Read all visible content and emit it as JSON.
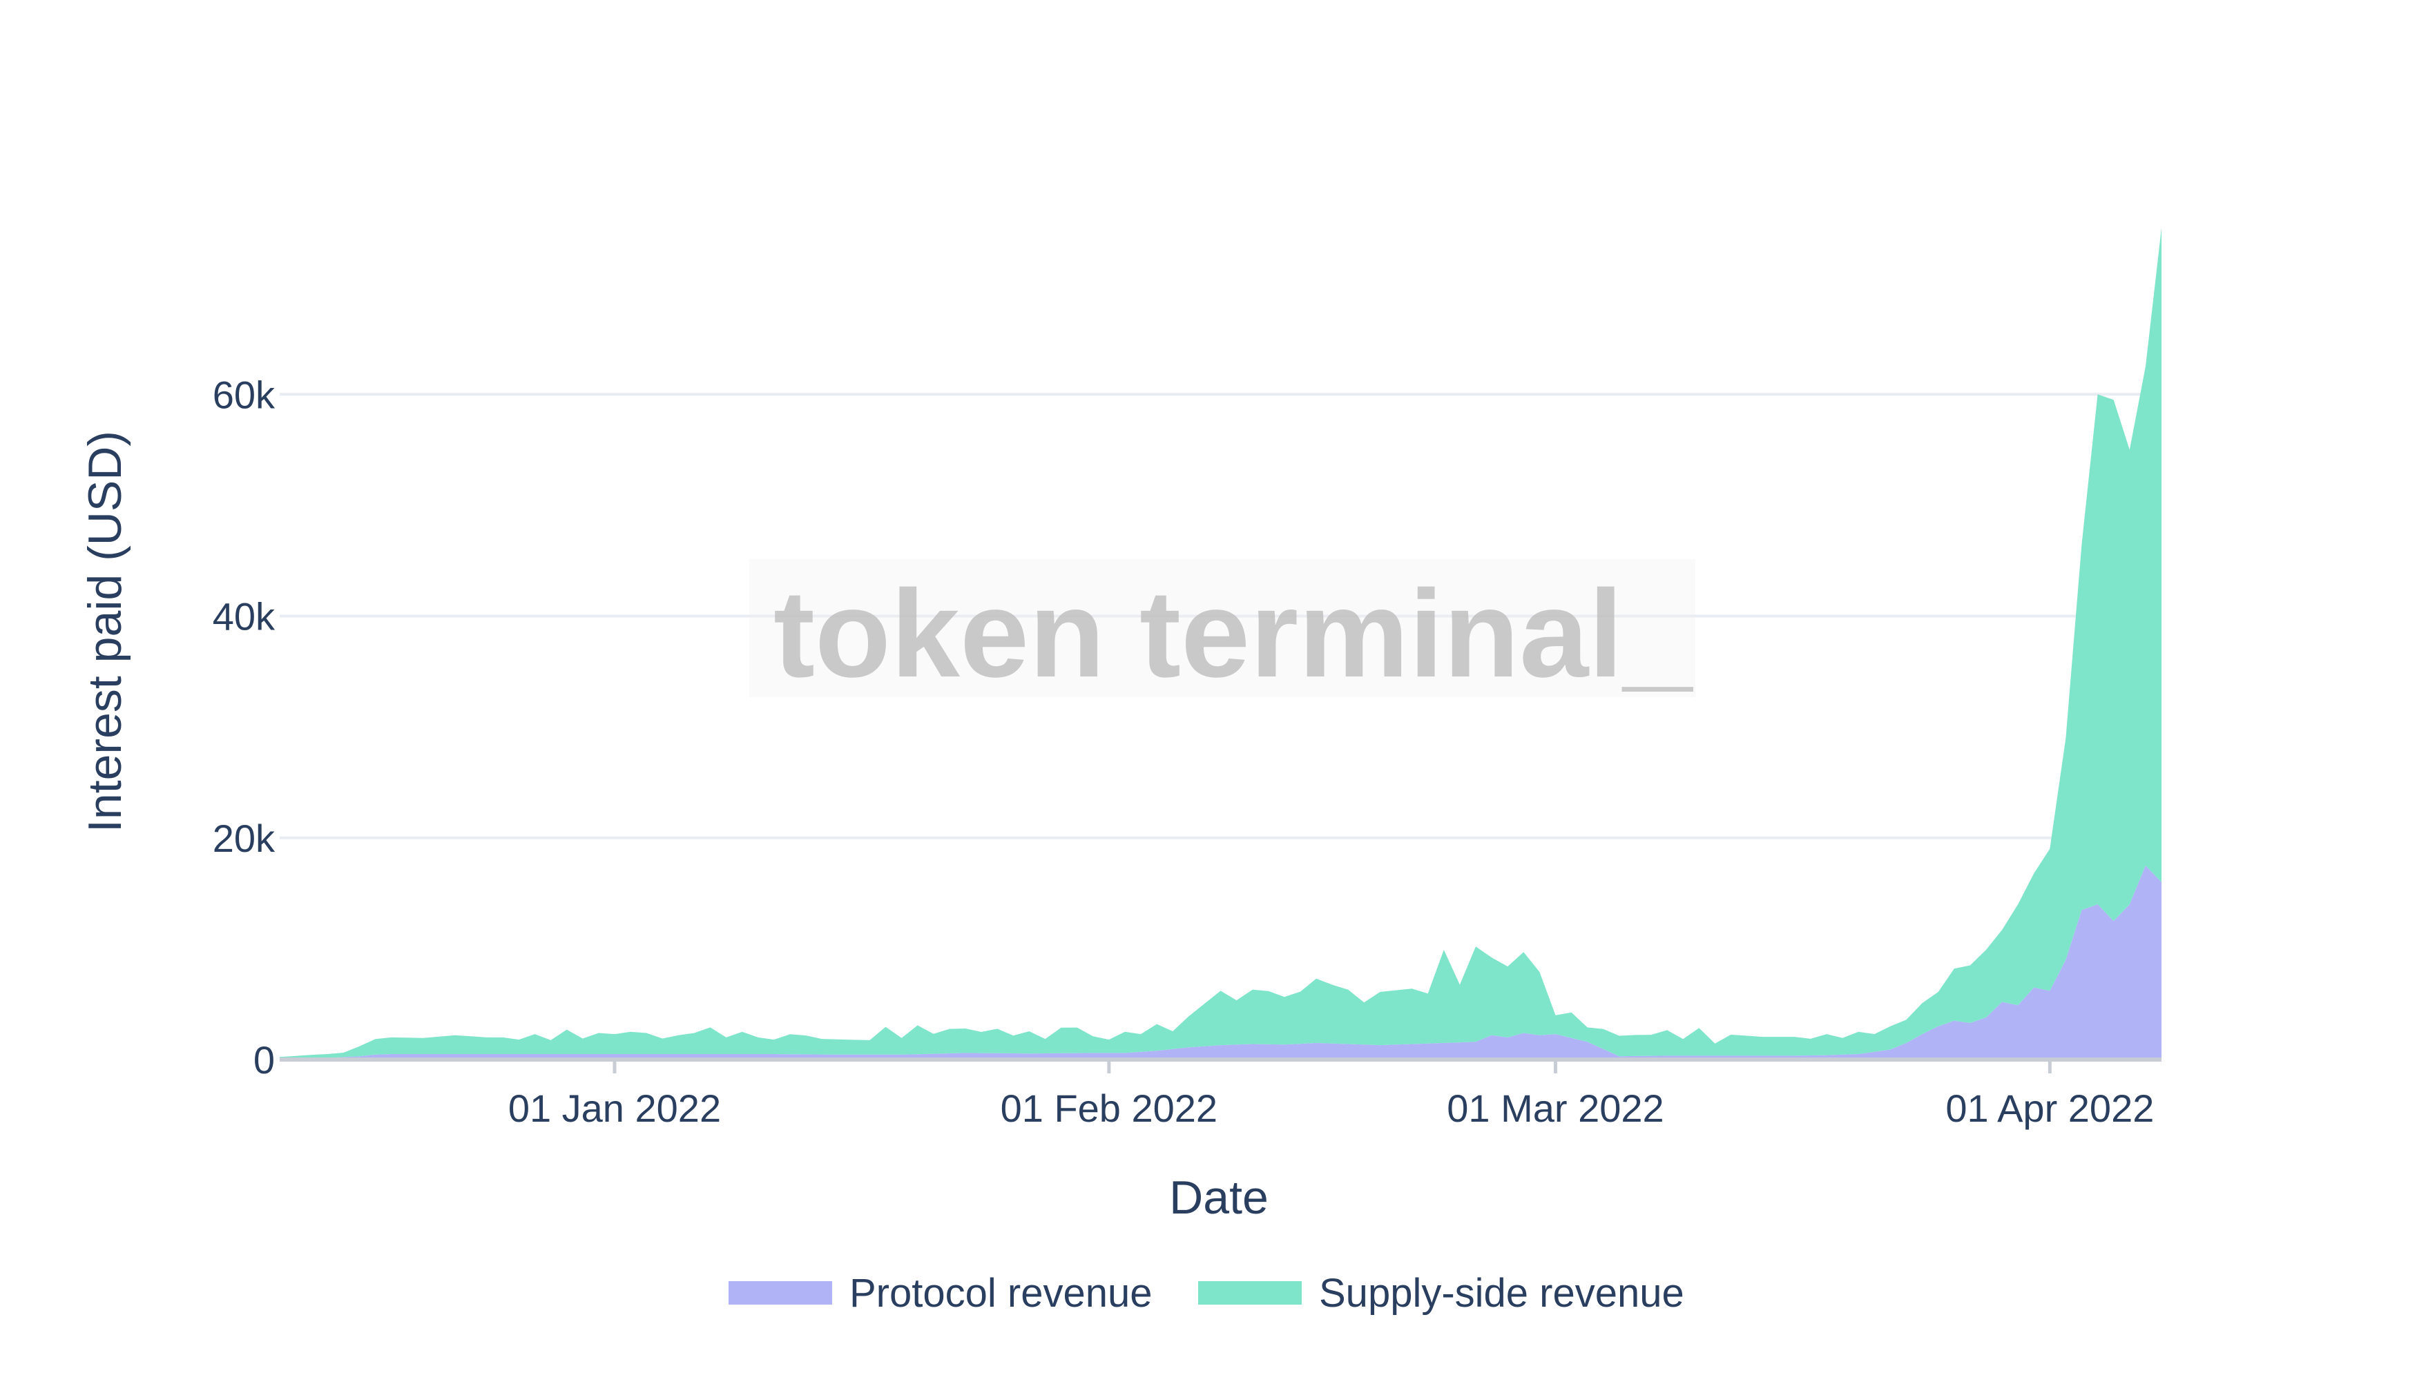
{
  "watermark": "token terminal_",
  "chart_data": {
    "type": "area",
    "stacked": true,
    "xlabel": "Date",
    "ylabel": "Interest paid (USD)",
    "x_ticks": [
      {
        "date": "2022-01-01",
        "label": "01 Jan 2022"
      },
      {
        "date": "2022-02-01",
        "label": "01 Feb 2022"
      },
      {
        "date": "2022-03-01",
        "label": "01 Mar 2022"
      },
      {
        "date": "2022-04-01",
        "label": "01 Apr 2022"
      }
    ],
    "y_ticks": [
      {
        "value": 0,
        "label": "0"
      },
      {
        "value": 20000,
        "label": "20k"
      },
      {
        "value": 40000,
        "label": "40k"
      },
      {
        "value": 60000,
        "label": "60k"
      }
    ],
    "xlim": [
      "2021-12-11",
      "2022-04-08"
    ],
    "ylim": [
      0,
      80000
    ],
    "grid": true,
    "legend_position": "bottom-center",
    "series": [
      {
        "name": "Protocol revenue",
        "color": "#b0b4f7",
        "points": [
          [
            "2021-12-11",
            80
          ],
          [
            "2021-12-14",
            150
          ],
          [
            "2021-12-16",
            300
          ],
          [
            "2021-12-17",
            450
          ],
          [
            "2021-12-18",
            500
          ],
          [
            "2021-12-20",
            500
          ],
          [
            "2021-12-22",
            500
          ],
          [
            "2021-12-26",
            500
          ],
          [
            "2021-12-30",
            500
          ],
          [
            "2022-01-03",
            500
          ],
          [
            "2022-01-07",
            500
          ],
          [
            "2022-01-11",
            500
          ],
          [
            "2022-01-15",
            450
          ],
          [
            "2022-01-19",
            450
          ],
          [
            "2022-01-23",
            600
          ],
          [
            "2022-01-27",
            550
          ],
          [
            "2022-01-31",
            600
          ],
          [
            "2022-02-02",
            600
          ],
          [
            "2022-02-04",
            800
          ],
          [
            "2022-02-06",
            1100
          ],
          [
            "2022-02-08",
            1300
          ],
          [
            "2022-02-10",
            1400
          ],
          [
            "2022-02-12",
            1350
          ],
          [
            "2022-02-14",
            1500
          ],
          [
            "2022-02-16",
            1400
          ],
          [
            "2022-02-18",
            1300
          ],
          [
            "2022-02-20",
            1400
          ],
          [
            "2022-02-22",
            1500
          ],
          [
            "2022-02-24",
            1600
          ],
          [
            "2022-02-25",
            2200
          ],
          [
            "2022-02-26",
            2000
          ],
          [
            "2022-02-27",
            2400
          ],
          [
            "2022-02-28",
            2200
          ],
          [
            "2022-03-01",
            2300
          ],
          [
            "2022-03-03",
            1600
          ],
          [
            "2022-03-05",
            300
          ],
          [
            "2022-03-08",
            350
          ],
          [
            "2022-03-12",
            350
          ],
          [
            "2022-03-16",
            350
          ],
          [
            "2022-03-18",
            400
          ],
          [
            "2022-03-20",
            500
          ],
          [
            "2022-03-21",
            700
          ],
          [
            "2022-03-22",
            900
          ],
          [
            "2022-03-23",
            1500
          ],
          [
            "2022-03-24",
            2300
          ],
          [
            "2022-03-25",
            3000
          ],
          [
            "2022-03-26",
            3500
          ],
          [
            "2022-03-27",
            3300
          ],
          [
            "2022-03-28",
            3800
          ],
          [
            "2022-03-29",
            5200
          ],
          [
            "2022-03-30",
            4900
          ],
          [
            "2022-03-31",
            6500
          ],
          [
            "2022-04-01",
            6200
          ],
          [
            "2022-04-02",
            9000
          ],
          [
            "2022-04-03",
            13500
          ],
          [
            "2022-04-04",
            14000
          ],
          [
            "2022-04-05",
            12500
          ],
          [
            "2022-04-06",
            14000
          ],
          [
            "2022-04-07",
            17500
          ],
          [
            "2022-04-08",
            16000
          ]
        ]
      },
      {
        "name": "Supply-side revenue",
        "color": "#7ee5ca",
        "points": [
          [
            "2021-12-11",
            150
          ],
          [
            "2021-12-13",
            300
          ],
          [
            "2021-12-15",
            400
          ],
          [
            "2021-12-17",
            1400
          ],
          [
            "2021-12-18",
            1500
          ],
          [
            "2021-12-20",
            1450
          ],
          [
            "2021-12-22",
            1700
          ],
          [
            "2021-12-24",
            1500
          ],
          [
            "2021-12-25",
            1500
          ],
          [
            "2021-12-26",
            1300
          ],
          [
            "2021-12-27",
            1800
          ],
          [
            "2021-12-28",
            1250
          ],
          [
            "2021-12-29",
            2200
          ],
          [
            "2021-12-30",
            1400
          ],
          [
            "2021-12-31",
            1900
          ],
          [
            "2022-01-01",
            1800
          ],
          [
            "2022-01-02",
            2000
          ],
          [
            "2022-01-03",
            1900
          ],
          [
            "2022-01-04",
            1400
          ],
          [
            "2022-01-05",
            1700
          ],
          [
            "2022-01-06",
            1900
          ],
          [
            "2022-01-07",
            2400
          ],
          [
            "2022-01-08",
            1500
          ],
          [
            "2022-01-09",
            2000
          ],
          [
            "2022-01-10",
            1500
          ],
          [
            "2022-01-11",
            1300
          ],
          [
            "2022-01-12",
            1800
          ],
          [
            "2022-01-13",
            1700
          ],
          [
            "2022-01-14",
            1400
          ],
          [
            "2022-01-17",
            1300
          ],
          [
            "2022-01-18",
            2500
          ],
          [
            "2022-01-19",
            1500
          ],
          [
            "2022-01-20",
            2600
          ],
          [
            "2022-01-21",
            1800
          ],
          [
            "2022-01-22",
            2200
          ],
          [
            "2022-01-23",
            2200
          ],
          [
            "2022-01-24",
            1900
          ],
          [
            "2022-01-25",
            2200
          ],
          [
            "2022-01-26",
            1600
          ],
          [
            "2022-01-27",
            2000
          ],
          [
            "2022-01-28",
            1300
          ],
          [
            "2022-01-29",
            2300
          ],
          [
            "2022-01-30",
            2300
          ],
          [
            "2022-01-31",
            1500
          ],
          [
            "2022-02-01",
            1200
          ],
          [
            "2022-02-02",
            1900
          ],
          [
            "2022-02-03",
            1600
          ],
          [
            "2022-02-04",
            2400
          ],
          [
            "2022-02-05",
            1600
          ],
          [
            "2022-02-06",
            2800
          ],
          [
            "2022-02-08",
            4900
          ],
          [
            "2022-02-09",
            4000
          ],
          [
            "2022-02-10",
            4900
          ],
          [
            "2022-02-11",
            4800
          ],
          [
            "2022-02-12",
            4300
          ],
          [
            "2022-02-13",
            4700
          ],
          [
            "2022-02-14",
            5800
          ],
          [
            "2022-02-15",
            5300
          ],
          [
            "2022-02-16",
            4900
          ],
          [
            "2022-02-17",
            3800
          ],
          [
            "2022-02-18",
            4800
          ],
          [
            "2022-02-20",
            5000
          ],
          [
            "2022-02-21",
            4500
          ],
          [
            "2022-02-22",
            8400
          ],
          [
            "2022-02-23",
            5200
          ],
          [
            "2022-02-24",
            8600
          ],
          [
            "2022-02-25",
            7000
          ],
          [
            "2022-02-26",
            6400
          ],
          [
            "2022-02-27",
            7300
          ],
          [
            "2022-02-28",
            5700
          ],
          [
            "2022-03-01",
            1700
          ],
          [
            "2022-03-02",
            2300
          ],
          [
            "2022-03-03",
            1300
          ],
          [
            "2022-03-04",
            1800
          ],
          [
            "2022-03-06",
            1900
          ],
          [
            "2022-03-07",
            1900
          ],
          [
            "2022-03-08",
            2300
          ],
          [
            "2022-03-09",
            1500
          ],
          [
            "2022-03-10",
            2500
          ],
          [
            "2022-03-11",
            1100
          ],
          [
            "2022-03-12",
            1900
          ],
          [
            "2022-03-14",
            1700
          ],
          [
            "2022-03-16",
            1700
          ],
          [
            "2022-03-17",
            1500
          ],
          [
            "2022-03-18",
            1900
          ],
          [
            "2022-03-19",
            1500
          ],
          [
            "2022-03-20",
            2000
          ],
          [
            "2022-03-21",
            1600
          ],
          [
            "2022-03-22",
            2100
          ],
          [
            "2022-03-23",
            2100
          ],
          [
            "2022-03-24",
            2800
          ],
          [
            "2022-03-25",
            3100
          ],
          [
            "2022-03-26",
            4700
          ],
          [
            "2022-03-27",
            5200
          ],
          [
            "2022-03-28",
            6100
          ],
          [
            "2022-03-29",
            6500
          ],
          [
            "2022-03-30",
            9100
          ],
          [
            "2022-03-31",
            10300
          ],
          [
            "2022-04-01",
            12800
          ],
          [
            "2022-04-02",
            20000
          ],
          [
            "2022-04-03",
            33000
          ],
          [
            "2022-04-04",
            46000
          ],
          [
            "2022-04-05",
            47000
          ],
          [
            "2022-04-06",
            41000
          ],
          [
            "2022-04-07",
            45000
          ],
          [
            "2022-04-08",
            59000
          ]
        ]
      }
    ]
  }
}
